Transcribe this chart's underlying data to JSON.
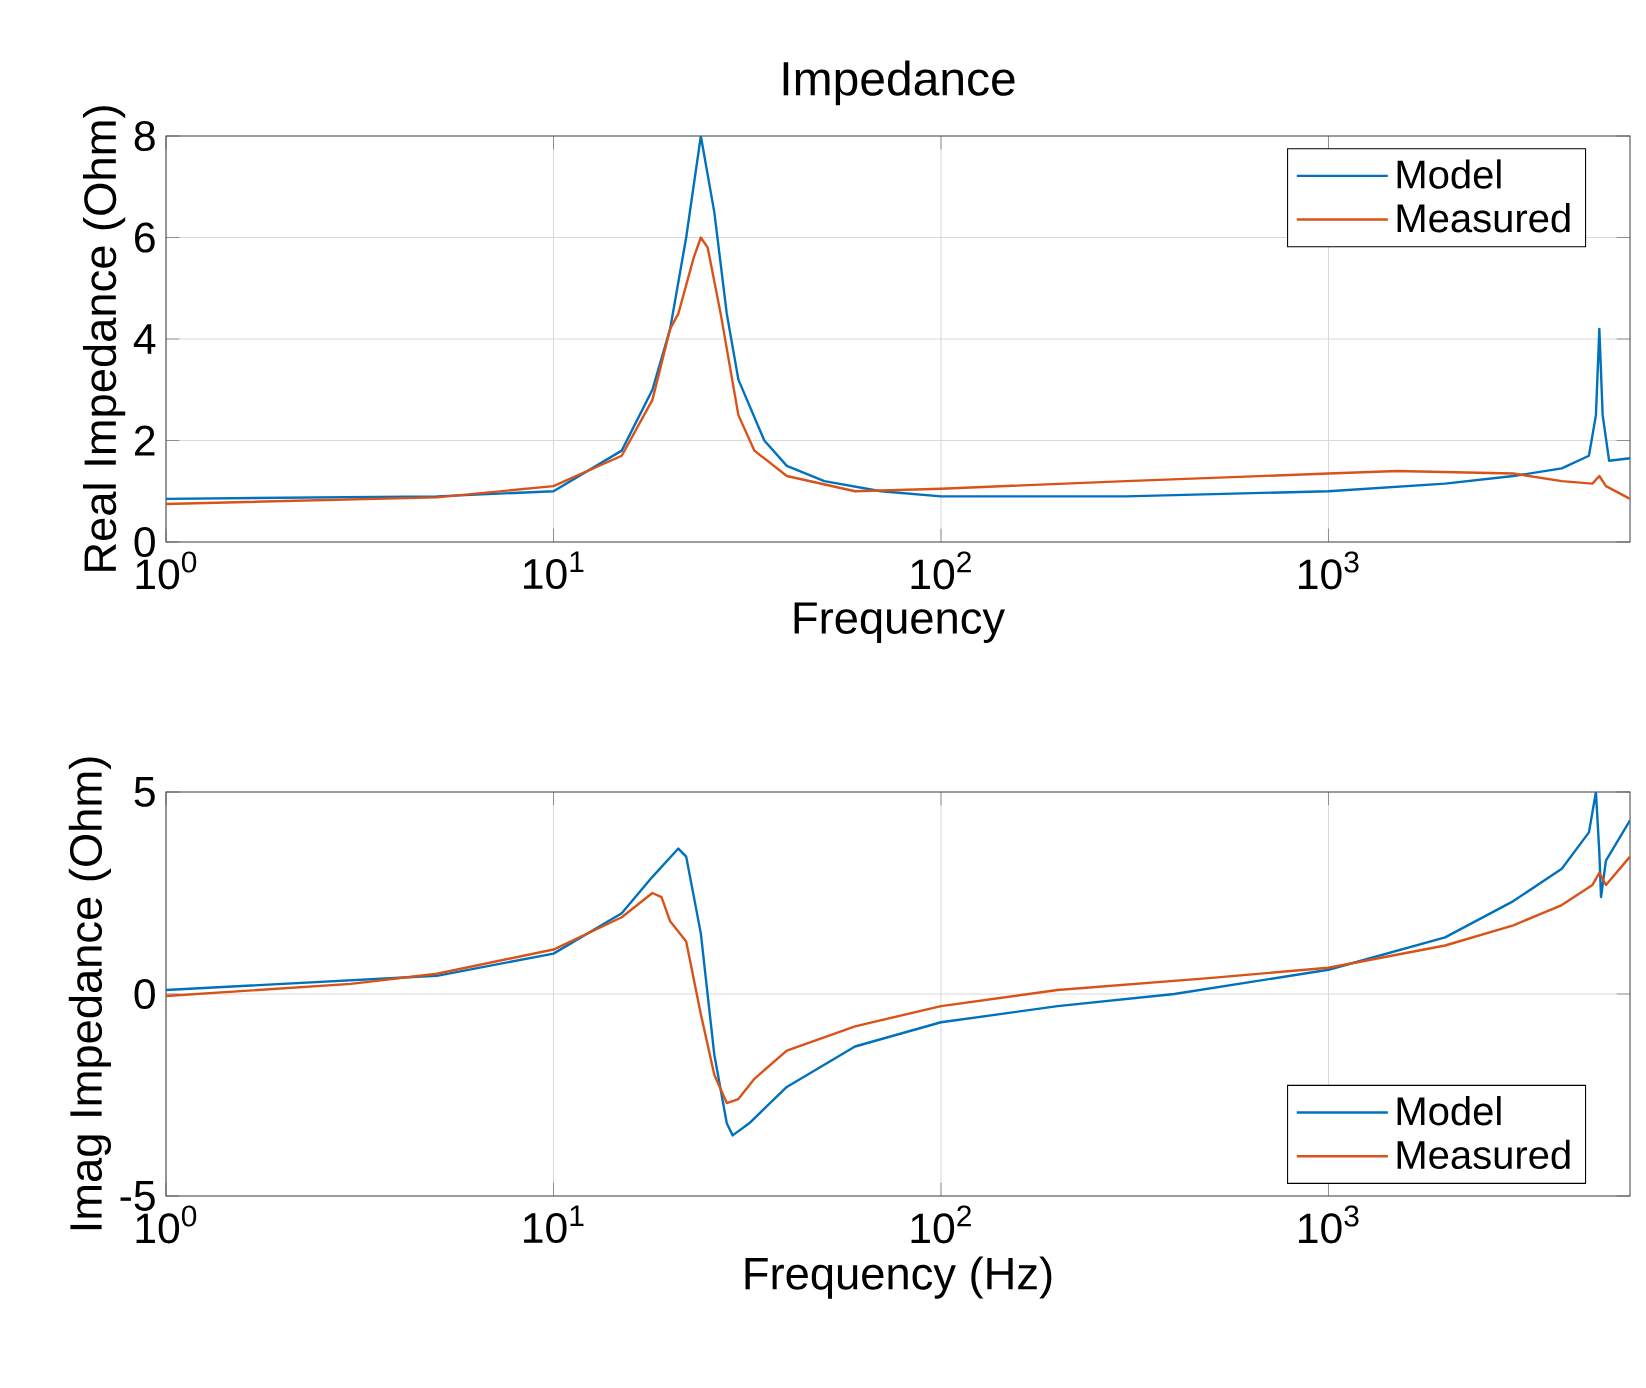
{
  "chart_data": [
    {
      "type": "line",
      "title": "Impedance",
      "xlabel": "Frequency",
      "ylabel": "Real Impedance (Ohm)",
      "log": "x",
      "grid": true,
      "legend": "top right",
      "marker": "none",
      "line_style": "solid",
      "xlim": [
        1,
        6000
      ],
      "xticks": [
        {
          "value": 1,
          "label": "10$^{0}$"
        },
        {
          "value": 10,
          "label": "10$^{1}$"
        },
        {
          "value": 100,
          "label": "10$^{2}$"
        },
        {
          "value": 1000,
          "label": "10$^{3}$"
        }
      ],
      "ylim": [
        0,
        8
      ],
      "yticks": [
        0,
        2,
        4,
        6,
        8
      ],
      "series": [
        {
          "name": "Model",
          "color": "#0072bd",
          "x": [
            1,
            5,
            10,
            15,
            18,
            20,
            22,
            24,
            26,
            28,
            30,
            35,
            40,
            50,
            70,
            100,
            300,
            1000,
            2000,
            3000,
            4000,
            4700,
            4900,
            5000,
            5100,
            5300,
            6000
          ],
          "values": [
            0.85,
            0.9,
            1.0,
            1.8,
            3,
            4.2,
            6,
            8.0,
            6.5,
            4.5,
            3.2,
            2.0,
            1.5,
            1.2,
            1.0,
            0.9,
            0.9,
            1.0,
            1.15,
            1.3,
            1.45,
            1.7,
            2.5,
            4.2,
            2.5,
            1.6,
            1.65
          ]
        },
        {
          "name": "Measured",
          "color": "#d95319",
          "x": [
            1,
            5,
            10,
            15,
            18,
            20,
            21,
            23,
            24,
            25,
            27,
            30,
            33,
            40,
            60,
            100,
            300,
            1000,
            1500,
            3000,
            4000,
            4800,
            5000,
            5200,
            6000
          ],
          "values": [
            0.75,
            0.88,
            1.1,
            1.7,
            2.8,
            4.2,
            4.5,
            5.6,
            6.0,
            5.8,
            4.5,
            2.5,
            1.8,
            1.3,
            1.0,
            1.05,
            1.2,
            1.35,
            1.4,
            1.35,
            1.2,
            1.15,
            1.3,
            1.1,
            0.85
          ]
        }
      ]
    },
    {
      "type": "line",
      "xlabel": "Frequency (Hz)",
      "ylabel": "Imag Impedance (Ohm)",
      "log": "x",
      "grid": true,
      "legend": "bottom right",
      "marker": "none",
      "line_style": "solid",
      "xlim": [
        1,
        6000
      ],
      "xticks": [
        {
          "value": 1,
          "label": "10$^{0}$"
        },
        {
          "value": 10,
          "label": "10$^{1}$"
        },
        {
          "value": 100,
          "label": "10$^{2}$"
        },
        {
          "value": 1000,
          "label": "10$^{3}$"
        }
      ],
      "ylim": [
        -5,
        5
      ],
      "yticks": [
        -5,
        0,
        5
      ],
      "series": [
        {
          "name": "Model",
          "color": "#0072bd",
          "x": [
            1,
            5,
            10,
            15,
            18,
            21,
            22,
            24,
            26,
            28,
            29,
            32,
            40,
            60,
            100,
            200,
            400,
            1000,
            2000,
            3000,
            4000,
            4700,
            4900,
            5000,
            5050,
            5200,
            6000
          ],
          "values": [
            0.1,
            0.45,
            1.0,
            2.0,
            2.9,
            3.6,
            3.4,
            1.5,
            -1.5,
            -3.2,
            -3.5,
            -3.2,
            -2.3,
            -1.3,
            -0.7,
            -0.3,
            0.0,
            0.6,
            1.4,
            2.3,
            3.1,
            4,
            5,
            3.5,
            2.4,
            3.3,
            4.3
          ]
        },
        {
          "name": "Measured",
          "color": "#d95319",
          "x": [
            1,
            3,
            5,
            10,
            15,
            18,
            19,
            20,
            22,
            24,
            26,
            28,
            30,
            33,
            40,
            60,
            100,
            200,
            500,
            1000,
            2000,
            3000,
            4000,
            4800,
            5000,
            5200,
            6000
          ],
          "values": [
            -0.05,
            0.25,
            0.5,
            1.1,
            1.9,
            2.5,
            2.4,
            1.8,
            1.3,
            -0.5,
            -2.0,
            -2.7,
            -2.6,
            -2.1,
            -1.4,
            -0.8,
            -0.3,
            0.1,
            0.4,
            0.65,
            1.2,
            1.7,
            2.2,
            2.7,
            3.0,
            2.7,
            3.4
          ]
        }
      ]
    }
  ]
}
